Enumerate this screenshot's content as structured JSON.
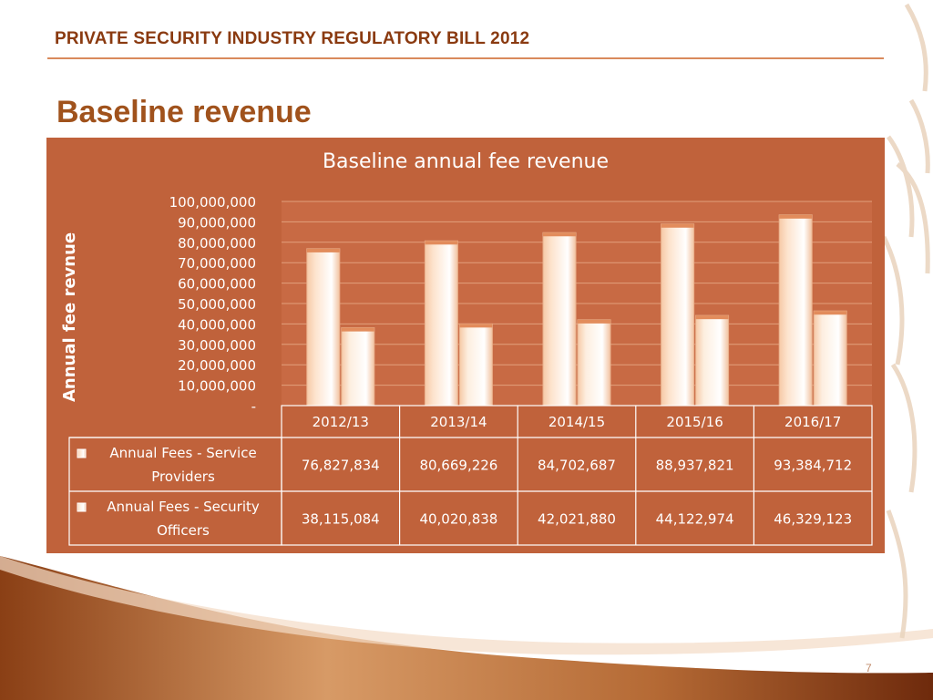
{
  "header": {
    "title": "PRIVATE SECURITY INDUSTRY REGULATORY BILL 2012"
  },
  "slide": {
    "title": "Baseline revenue",
    "page_number": "7"
  },
  "colors": {
    "panel": "#c0623b",
    "bar_series_1": "#fde3cd",
    "bar_series_2": "#fdeedf",
    "grid": "#e2a07c",
    "accent_text": "#a0521c"
  },
  "chart_data": {
    "type": "bar",
    "title": "Baseline annual fee revenue",
    "xlabel": "",
    "ylabel": "Annual fee revnue",
    "categories": [
      "2012/13",
      "2013/14",
      "2014/15",
      "2015/16",
      "2016/17"
    ],
    "ylim": [
      0,
      100000000
    ],
    "yticks": [
      "-",
      "10,000,000",
      "20,000,000",
      "30,000,000",
      "40,000,000",
      "50,000,000",
      "60,000,000",
      "70,000,000",
      "80,000,000",
      "90,000,000",
      "100,000,000"
    ],
    "grid": true,
    "legend": "data-table",
    "series": [
      {
        "name": "Annual Fees - Service Providers",
        "values": [
          76827834,
          80669226,
          84702687,
          88937821,
          93384712
        ],
        "labels": [
          "76,827,834",
          "80,669,226",
          "84,702,687",
          "88,937,821",
          "93,384,712"
        ]
      },
      {
        "name": "Annual Fees - Security Officers",
        "values": [
          38115084,
          40020838,
          42021880,
          44122974,
          46329123
        ],
        "labels": [
          "38,115,084",
          "40,020,838",
          "42,021,880",
          "44,122,974",
          "46,329,123"
        ]
      }
    ]
  }
}
